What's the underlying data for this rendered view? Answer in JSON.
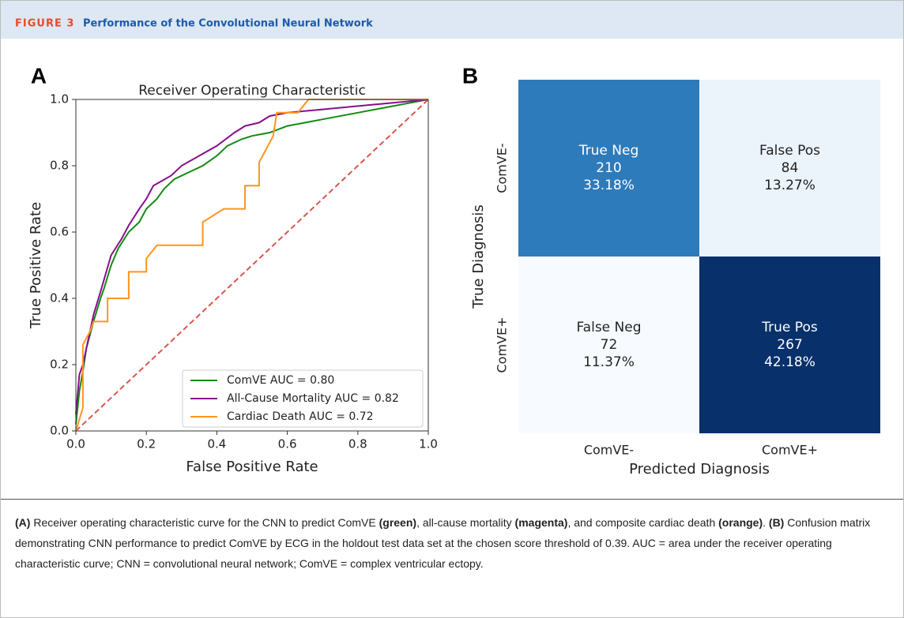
{
  "header": {
    "label": "FIGURE 3",
    "title": "Performance of the Convolutional Neural Network"
  },
  "chart_data": [
    {
      "type": "line",
      "panel": "A",
      "title": "Receiver Operating Characteristic",
      "x_label": "False Positive Rate",
      "y_label": "True Positive Rate",
      "xlim": [
        0,
        1
      ],
      "ylim": [
        0,
        1
      ],
      "xticks": [
        {
          "value": 0,
          "label": "0.0"
        },
        0.2,
        0.4,
        0.6,
        0.8,
        {
          "value": 1,
          "label": "1.0"
        }
      ],
      "yticks": [
        {
          "value": 0,
          "label": "0.0"
        },
        0.2,
        0.4,
        0.6,
        0.8,
        {
          "value": 1,
          "label": "1.0"
        }
      ],
      "legend": "lower right",
      "series": [
        {
          "name": "ComVE AUC = 0.80",
          "color": "#138a13",
          "x": [
            0,
            0.01,
            0.02,
            0.03,
            0.05,
            0.07,
            0.08,
            0.1,
            0.12,
            0.15,
            0.18,
            0.2,
            0.23,
            0.25,
            0.28,
            0.32,
            0.36,
            0.4,
            0.43,
            0.47,
            0.5,
            0.55,
            0.6,
            0.7,
            0.8,
            0.9,
            1
          ],
          "values": [
            0.02,
            0.12,
            0.18,
            0.25,
            0.33,
            0.4,
            0.43,
            0.5,
            0.55,
            0.6,
            0.63,
            0.67,
            0.7,
            0.73,
            0.76,
            0.78,
            0.8,
            0.83,
            0.86,
            0.88,
            0.89,
            0.9,
            0.92,
            0.94,
            0.96,
            0.98,
            1
          ]
        },
        {
          "name": "All-Cause Mortality AUC = 0.82",
          "color": "#870f8c",
          "x": [
            0,
            0.01,
            0.02,
            0.03,
            0.05,
            0.07,
            0.1,
            0.13,
            0.15,
            0.18,
            0.2,
            0.22,
            0.27,
            0.3,
            0.35,
            0.4,
            0.45,
            0.48,
            0.52,
            0.55,
            0.6,
            0.7,
            0.8,
            0.9,
            1
          ],
          "values": [
            0.05,
            0.17,
            0.2,
            0.25,
            0.35,
            0.42,
            0.53,
            0.58,
            0.62,
            0.67,
            0.7,
            0.74,
            0.77,
            0.8,
            0.83,
            0.86,
            0.9,
            0.92,
            0.93,
            0.95,
            0.96,
            0.97,
            0.98,
            0.99,
            1
          ]
        },
        {
          "name": "Cardiac Death AUC = 0.72",
          "color": "#ff9520",
          "x": [
            0,
            0.02,
            0.02,
            0.04,
            0.05,
            0.09,
            0.09,
            0.15,
            0.15,
            0.2,
            0.2,
            0.23,
            0.36,
            0.36,
            0.42,
            0.48,
            0.48,
            0.52,
            0.52,
            0.54,
            0.56,
            0.57,
            0.63,
            0.66,
            1
          ],
          "values": [
            0,
            0.07,
            0.26,
            0.3,
            0.33,
            0.33,
            0.4,
            0.4,
            0.48,
            0.48,
            0.52,
            0.56,
            0.56,
            0.63,
            0.67,
            0.67,
            0.74,
            0.74,
            0.81,
            0.85,
            0.89,
            0.96,
            0.96,
            1,
            1
          ]
        }
      ]
    },
    {
      "type": "heatmap",
      "panel": "B",
      "x_label": "Predicted Diagnosis",
      "y_label": "True Diagnosis",
      "x_categories": [
        "ComVE-",
        "ComVE+"
      ],
      "y_categories": [
        "ComVE-",
        "ComVE+"
      ],
      "colormap": "Blues",
      "cell_names": [
        [
          "True Neg",
          "False Pos"
        ],
        [
          "False Neg",
          "True Pos"
        ]
      ],
      "values": [
        [
          210,
          84
        ],
        [
          72,
          267
        ]
      ],
      "percents": [
        [
          {
            "value": 33.18,
            "label": "33.18%"
          },
          {
            "value": 13.27,
            "label": "13.27%"
          }
        ],
        [
          {
            "value": 11.37,
            "label": "11.37%"
          },
          {
            "value": 42.18,
            "label": "42.18%"
          }
        ]
      ]
    }
  ],
  "caption": [
    {
      "text": "(A)",
      "bold": true
    },
    {
      "text": " Receiver operating characteristic curve for the CNN to predict ComVE ",
      "bold": false
    },
    {
      "text": "(green)",
      "bold": true
    },
    {
      "text": ", all-cause mortality ",
      "bold": false
    },
    {
      "text": "(magenta)",
      "bold": true
    },
    {
      "text": ", and composite cardiac death ",
      "bold": false
    },
    {
      "text": "(orange)",
      "bold": true
    },
    {
      "text": ". ",
      "bold": false
    },
    {
      "text": "(B)",
      "bold": true
    },
    {
      "text": " Confusion matrix demonstrating CNN performance to predict ComVE by ECG in the holdout test data set at the chosen score threshold of 0.39. AUC = area under the receiver operating characteristic curve; CNN = convolutional neural network; ComVE = complex ventricular ectopy.",
      "bold": false
    }
  ]
}
